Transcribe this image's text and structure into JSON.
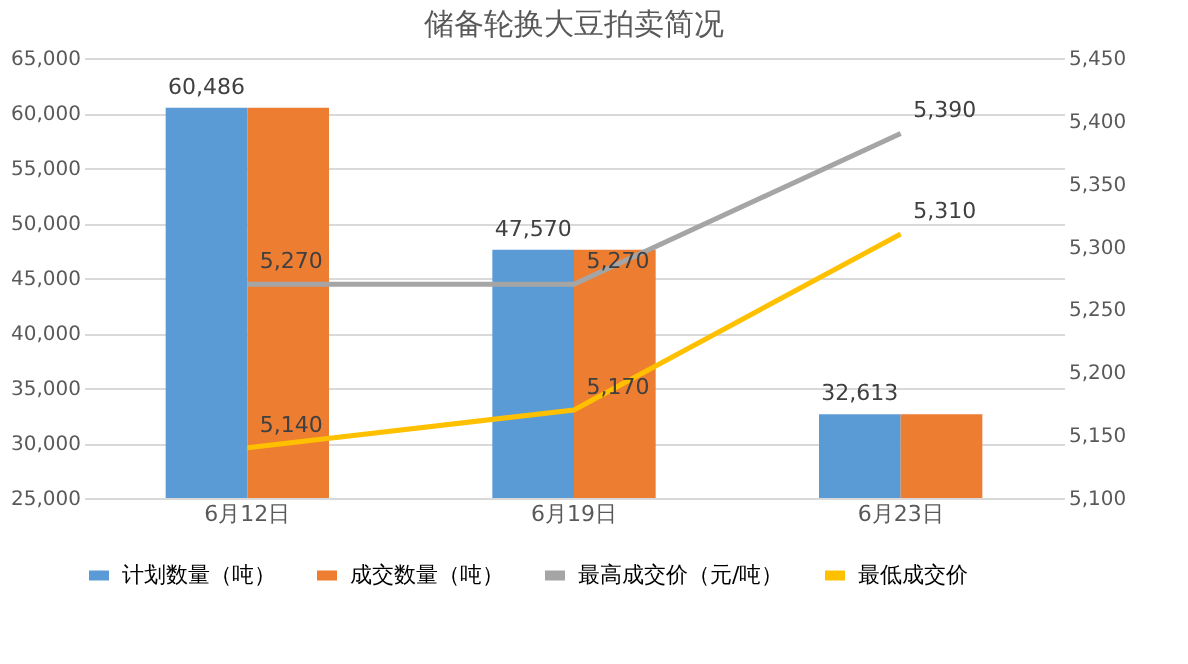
{
  "chart_data": {
    "type": "bar",
    "title": "储备轮换大豆拍卖简况",
    "categories": [
      "6月12日",
      "6月19日",
      "6月23日"
    ],
    "series": [
      {
        "name": "计划数量（吨）",
        "color": "#5b9bd5",
        "values": [
          60486,
          47570,
          32613
        ],
        "value_labels": [
          "60,486",
          "47,570",
          "32,613"
        ]
      },
      {
        "name": "成交数量（吨）",
        "color": "#ed7d31",
        "values": [
          60486,
          47570,
          32613
        ],
        "value_labels": [
          null,
          null,
          null
        ]
      },
      {
        "name": "最高成交价（元/吨）",
        "type": "line",
        "axis": "y2",
        "color": "#a5a5a5",
        "values": [
          5270,
          5270,
          5390
        ],
        "value_labels": [
          "5,270",
          "5,270",
          "5,390"
        ]
      },
      {
        "name": "最低成交价",
        "type": "line",
        "axis": "y2",
        "color": "#ffc000",
        "values": [
          5140,
          5170,
          5310
        ],
        "value_labels": [
          "5,140",
          "5,170",
          "5,310"
        ]
      }
    ],
    "ylim": [
      25000,
      65000
    ],
    "yticks": [
      {
        "value": 25000,
        "label": "25,000"
      },
      {
        "value": 30000,
        "label": "30,000"
      },
      {
        "value": 35000,
        "label": "35,000"
      },
      {
        "value": 40000,
        "label": "40,000"
      },
      {
        "value": 45000,
        "label": "45,000"
      },
      {
        "value": 50000,
        "label": "50,000"
      },
      {
        "value": 55000,
        "label": "55,000"
      },
      {
        "value": 60000,
        "label": "60,000"
      },
      {
        "value": 65000,
        "label": "65,000"
      }
    ],
    "y2lim": [
      5100,
      5450
    ],
    "y2ticks": [
      {
        "value": 5100,
        "label": "5,100"
      },
      {
        "value": 5150,
        "label": "5,150"
      },
      {
        "value": 5200,
        "label": "5,200"
      },
      {
        "value": 5250,
        "label": "5,250"
      },
      {
        "value": 5300,
        "label": "5,300"
      },
      {
        "value": 5350,
        "label": "5,350"
      },
      {
        "value": 5400,
        "label": "5,400"
      },
      {
        "value": 5450,
        "label": "5,450"
      }
    ],
    "grid": "y",
    "legend": "bottom"
  }
}
